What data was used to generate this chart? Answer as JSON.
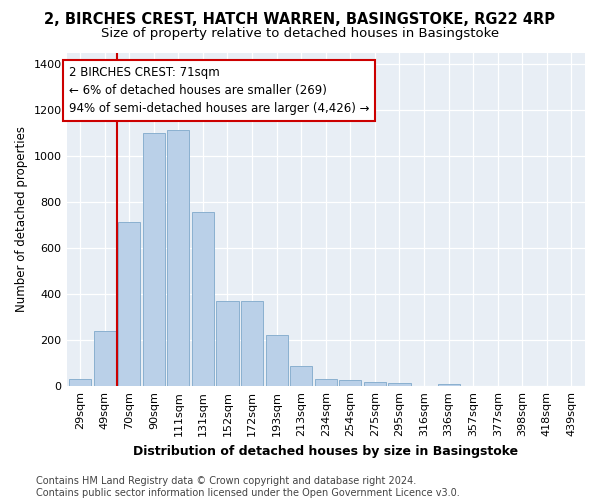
{
  "title1": "2, BIRCHES CREST, HATCH WARREN, BASINGSTOKE, RG22 4RP",
  "title2": "Size of property relative to detached houses in Basingstoke",
  "xlabel": "Distribution of detached houses by size in Basingstoke",
  "ylabel": "Number of detached properties",
  "categories": [
    "29sqm",
    "49sqm",
    "70sqm",
    "90sqm",
    "111sqm",
    "131sqm",
    "152sqm",
    "172sqm",
    "193sqm",
    "213sqm",
    "234sqm",
    "254sqm",
    "275sqm",
    "295sqm",
    "316sqm",
    "336sqm",
    "357sqm",
    "377sqm",
    "398sqm",
    "418sqm",
    "439sqm"
  ],
  "values": [
    30,
    240,
    714,
    1100,
    1112,
    755,
    370,
    370,
    225,
    90,
    30,
    28,
    20,
    13,
    0,
    12,
    0,
    0,
    0,
    0,
    0
  ],
  "bar_color": "#bad0e8",
  "bar_edge_color": "#8ab0d0",
  "vline_color": "#cc0000",
  "annotation_text": "2 BIRCHES CREST: 71sqm\n← 6% of detached houses are smaller (269)\n94% of semi-detached houses are larger (4,426) →",
  "annotation_box_color": "#cc0000",
  "ylim": [
    0,
    1450
  ],
  "yticks": [
    0,
    200,
    400,
    600,
    800,
    1000,
    1200,
    1400
  ],
  "bg_color": "#e8eef5",
  "footer_text": "Contains HM Land Registry data © Crown copyright and database right 2024.\nContains public sector information licensed under the Open Government Licence v3.0.",
  "title1_fontsize": 10.5,
  "title2_fontsize": 9.5,
  "xlabel_fontsize": 9,
  "ylabel_fontsize": 8.5,
  "tick_fontsize": 8,
  "annot_fontsize": 8.5,
  "footer_fontsize": 7
}
